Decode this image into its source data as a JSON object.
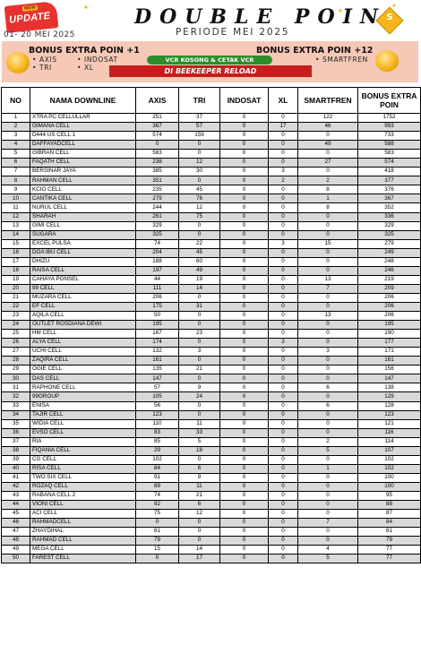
{
  "header": {
    "badge_new": "NEW",
    "badge_update": "UPDATE",
    "date_range": "01- 20 MEI 2025",
    "title": "DOUBLE POIN",
    "subtitle": "PERIODE MEI 2025",
    "logo_letter": "S",
    "bonus_left": "BONUS EXTRA POIN +1",
    "bonus_left_ops": [
      "• AXIS",
      "• TRI",
      "• INDOSAT",
      "• XL"
    ],
    "bonus_right": "BONUS EXTRA POIN +12",
    "bonus_right_ops": [
      "• SMARTFREN"
    ],
    "pill_text": "VCR KOSONG & CETAK VCR",
    "red_bar_text": "DI BEEKEEPER RELOAD",
    "coin_icon": "coin-icon",
    "colors": {
      "badge": "#e8322f",
      "promo_bg": "#f6c8b6",
      "pill": "#2d8d2a",
      "bar": "#c81d1d",
      "coin": "#f5b51b"
    }
  },
  "table": {
    "columns": [
      "NO",
      "NAMA DOWNLINE",
      "AXIS",
      "TRI",
      "INDOSAT",
      "XL",
      "SMARTFREN",
      "BONUS EXTRA POIN"
    ],
    "rows": [
      [
        "1",
        "XTRA PC CELLULLAR",
        "251",
        "37",
        "0",
        "0",
        "122",
        "1752"
      ],
      [
        "2",
        "GIMANA CELL",
        "367",
        "57",
        "0",
        "17",
        "46",
        "993"
      ],
      [
        "3",
        "D444 US CELL 1",
        "574",
        "159",
        "0",
        "0",
        "0",
        "733"
      ],
      [
        "4",
        "DAFFAYADCELL",
        "0",
        "0",
        "0",
        "0",
        "49",
        "588"
      ],
      [
        "5",
        "GIBRAN CELL",
        "583",
        "0",
        "0",
        "0",
        "0",
        "583"
      ],
      [
        "6",
        "FAQATH CELL",
        "238",
        "12",
        "0",
        "0",
        "27",
        "574"
      ],
      [
        "7",
        "BERSINAR JAYA",
        "385",
        "30",
        "0",
        "3",
        "0",
        "418"
      ],
      [
        "8",
        "RAHMAN CELL",
        "351",
        "0",
        "0",
        "2",
        "2",
        "377"
      ],
      [
        "9",
        "KCIO CELL",
        "235",
        "45",
        "0",
        "0",
        "8",
        "376"
      ],
      [
        "10",
        "CANTIKA CELL",
        "279",
        "76",
        "0",
        "0",
        "1",
        "367"
      ],
      [
        "11",
        "NURUL CELL",
        "244",
        "12",
        "0",
        "0",
        "8",
        "352"
      ],
      [
        "12",
        "SHARAH",
        "261",
        "75",
        "0",
        "0",
        "0",
        "336"
      ],
      [
        "13",
        "GIMI CELL",
        "329",
        "0",
        "0",
        "0",
        "0",
        "329"
      ],
      [
        "14",
        "SUGARA",
        "325",
        "0",
        "0",
        "0",
        "0",
        "325"
      ],
      [
        "15",
        "EXCEL PULSA",
        "74",
        "22",
        "0",
        "3",
        "15",
        "279"
      ],
      [
        "16",
        "DOA IBU CELL",
        "204",
        "45",
        "0",
        "0",
        "0",
        "249"
      ],
      [
        "17",
        "DHIZU",
        "188",
        "60",
        "0",
        "0",
        "0",
        "248"
      ],
      [
        "18",
        "RAISA CELL",
        "197",
        "49",
        "0",
        "0",
        "0",
        "246"
      ],
      [
        "19",
        "CAHAYA PONSEL",
        "44",
        "19",
        "0",
        "0",
        "13",
        "219"
      ],
      [
        "20",
        "99 CELL",
        "111",
        "14",
        "0",
        "0",
        "7",
        "209"
      ],
      [
        "21",
        "MUZARA CELL",
        "206",
        "0",
        "0",
        "0",
        "0",
        "206"
      ],
      [
        "22",
        "EF CELL",
        "175",
        "31",
        "0",
        "0",
        "0",
        "206"
      ],
      [
        "23",
        "AQILA CELL",
        "50",
        "0",
        "0",
        "0",
        "13",
        "206"
      ],
      [
        "24",
        "OUTLET ROSDIANA DEWI",
        "195",
        "0",
        "0",
        "0",
        "0",
        "195"
      ],
      [
        "25",
        "HM CELL",
        "167",
        "23",
        "0",
        "0",
        "0",
        "190"
      ],
      [
        "26",
        "ALYA CELL",
        "174",
        "0",
        "0",
        "3",
        "0",
        "177"
      ],
      [
        "27",
        "UCHI CELL",
        "132",
        "3",
        "0",
        "0",
        "3",
        "171"
      ],
      [
        "28",
        "ZAQIRA CELL",
        "161",
        "0",
        "0",
        "0",
        "0",
        "161"
      ],
      [
        "29",
        "OGIE CELL",
        "135",
        "21",
        "0",
        "0",
        "0",
        "156"
      ],
      [
        "30",
        "DAS CELL",
        "147",
        "0",
        "0",
        "0",
        "0",
        "147"
      ],
      [
        "31",
        "RAPHONE CELL",
        "57",
        "9",
        "0",
        "0",
        "6",
        "138"
      ],
      [
        "32",
        "99GROUP",
        "105",
        "24",
        "0",
        "0",
        "0",
        "129"
      ],
      [
        "33",
        "ENISA",
        "56",
        "0",
        "0",
        "0",
        "6",
        "128"
      ],
      [
        "34",
        "TAJIR CELL",
        "123",
        "0",
        "0",
        "0",
        "0",
        "123"
      ],
      [
        "35",
        "WIDIA CELL",
        "110",
        "11",
        "0",
        "0",
        "0",
        "121"
      ],
      [
        "36",
        "EVSO CELL",
        "83",
        "33",
        "0",
        "0",
        "0",
        "116"
      ],
      [
        "37",
        "RIA",
        "85",
        "5",
        "0",
        "0",
        "2",
        "114"
      ],
      [
        "38",
        "FIQANIA CELL",
        "29",
        "18",
        "0",
        "0",
        "5",
        "107"
      ],
      [
        "39",
        "CG CELL",
        "102",
        "0",
        "0",
        "0",
        "0",
        "102"
      ],
      [
        "40",
        "RISA CELL",
        "84",
        "6",
        "0",
        "0",
        "1",
        "102"
      ],
      [
        "41",
        "TWO SIX CELL",
        "91",
        "9",
        "0",
        "0",
        "0",
        "100"
      ],
      [
        "42",
        "ROZAQ CELL",
        "89",
        "11",
        "0",
        "0",
        "0",
        "100"
      ],
      [
        "43",
        "RABANA CELL 2",
        "74",
        "21",
        "0",
        "0",
        "0",
        "95"
      ],
      [
        "44",
        "VIONI CELL",
        "82",
        "6",
        "0",
        "0",
        "0",
        "88"
      ],
      [
        "45",
        "ACI CELL",
        "75",
        "12",
        "0",
        "0",
        "0",
        "87"
      ],
      [
        "46",
        "RAHMADCELL",
        "0",
        "0",
        "0",
        "0",
        "7",
        "84"
      ],
      [
        "47",
        "ZHAYDIHAL",
        "81",
        "0",
        "0",
        "0",
        "0",
        "81"
      ],
      [
        "48",
        "RAHMAD CELL",
        "79",
        "0",
        "0",
        "0",
        "0",
        "79"
      ],
      [
        "49",
        "MEGA CELL",
        "15",
        "14",
        "0",
        "0",
        "4",
        "77"
      ],
      [
        "50",
        "FAREST CELL",
        "0",
        "17",
        "0",
        "0",
        "5",
        "77"
      ]
    ]
  }
}
